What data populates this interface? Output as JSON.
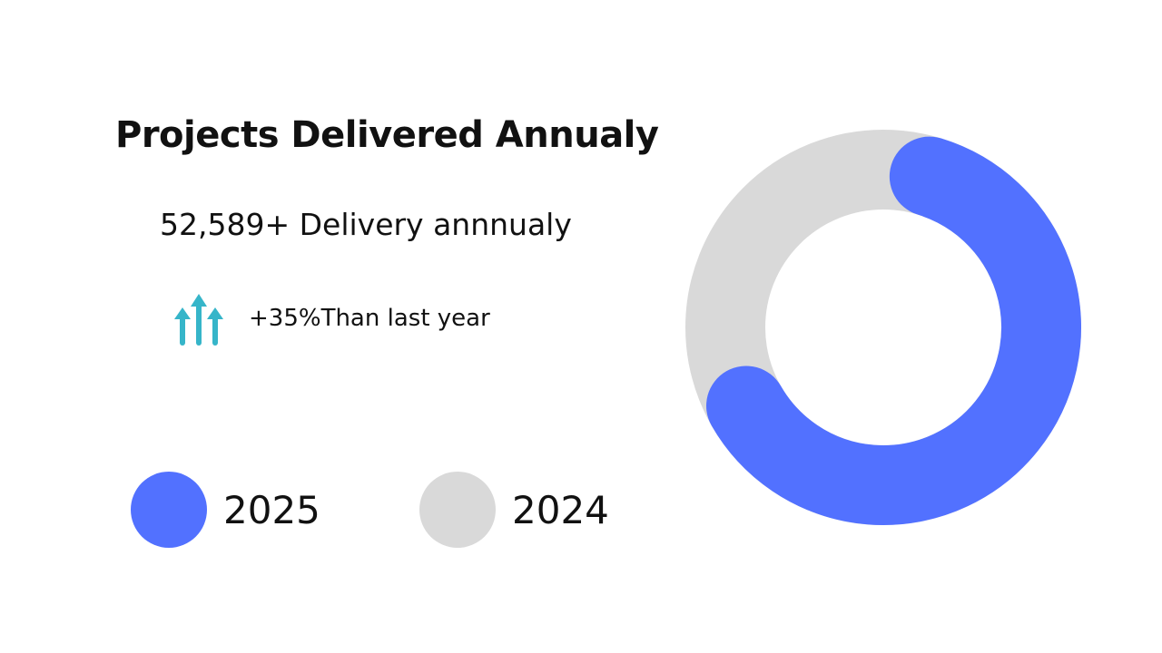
{
  "title": "Projects Delivered Annualy",
  "stat_text": "52,589+ Delivery annnualy",
  "growth": {
    "icon": "trending-up-arrows-icon",
    "text": "+35%Than last year",
    "color": "#36b5c9"
  },
  "legend": [
    {
      "label": "2025",
      "color": "#5271ff"
    },
    {
      "label": "2024",
      "color": "#d9d9d9"
    }
  ],
  "chart_data": {
    "type": "pie",
    "variant": "donut",
    "series": [
      {
        "name": "2025",
        "value": 62,
        "color": "#5271ff"
      },
      {
        "name": "2024",
        "value": 38,
        "color": "#d9d9d9"
      }
    ],
    "start_angle_deg": 17,
    "unit": "percent",
    "rounded_caps": true,
    "title": "Projects Delivered Annualy"
  }
}
